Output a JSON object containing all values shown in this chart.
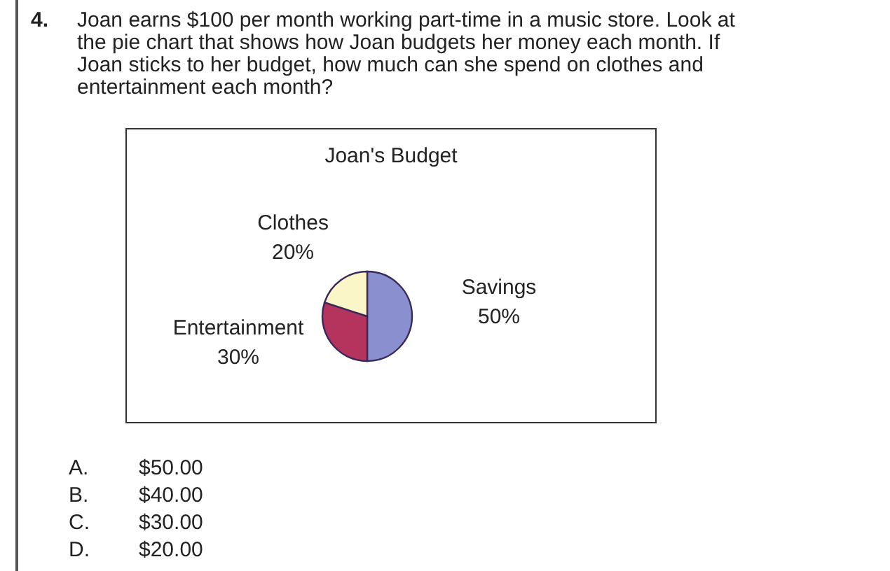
{
  "chart_data": {
    "type": "pie",
    "title": "Joan's Budget",
    "categories": [
      "Savings",
      "Entertainment",
      "Clothes"
    ],
    "values": [
      50,
      30,
      20
    ],
    "value_labels": [
      "50%",
      "30%",
      "20%"
    ],
    "colors": [
      "#8a8fd0",
      "#b5345e",
      "#fbf6c8"
    ],
    "annotations": [
      "4.",
      "Joan earns $100 per month working part-time in a music store. Look at the pie chart that shows how Joan budgets her money each month. If Joan sticks to her budget, how much can she spend on clothes and entertainment each month?",
      "A.",
      "$50.00",
      "B.",
      "$40.00",
      "C.",
      "$30.00",
      "D.",
      "$20.00"
    ]
  }
}
